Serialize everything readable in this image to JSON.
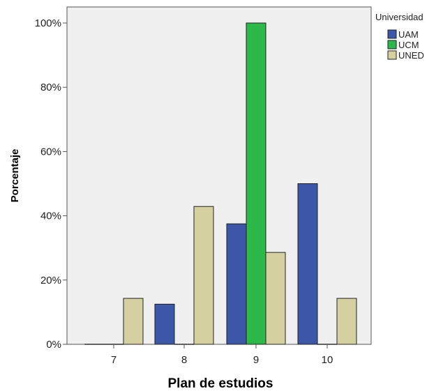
{
  "chart_data": {
    "type": "bar",
    "xlabel": "Plan de estudios",
    "ylabel": "Porcentaje",
    "categories": [
      "7",
      "8",
      "9",
      "10"
    ],
    "ylim": [
      0,
      100
    ],
    "yticks": [
      "0%",
      "20%",
      "40%",
      "60%",
      "80%",
      "100%"
    ],
    "ytick_values": [
      0,
      20,
      40,
      60,
      80,
      100
    ],
    "legend_title": "Universidad",
    "legend_position": "top-right",
    "grid": false,
    "series": [
      {
        "name": "UAM",
        "color": "#3c56a8",
        "values": [
          0,
          12.5,
          37.5,
          50
        ]
      },
      {
        "name": "UCM",
        "color": "#2db84a",
        "values": [
          0,
          0,
          100,
          0
        ]
      },
      {
        "name": "UNED",
        "color": "#d5d0a0",
        "values": [
          14.3,
          42.9,
          28.6,
          14.3
        ]
      }
    ]
  }
}
